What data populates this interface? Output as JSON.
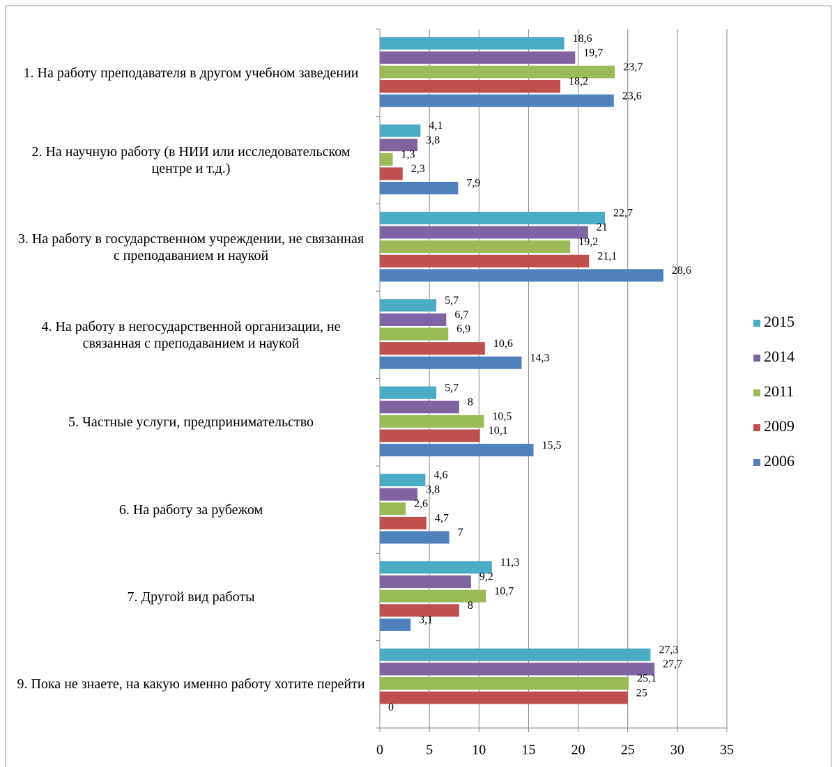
{
  "chart_data": {
    "type": "bar",
    "orientation": "horizontal",
    "categories": [
      "1. На работу преподавателя в другом учебном заведении",
      "2. На научную работу (в НИИ или исследовательском центре и т.д.)",
      "3. На работу в государственном учреждении, не связанная с преподаванием и наукой",
      "4. На работу в негосударственной организации, не связанная с преподаванием и наукой",
      "5. Частные услуги, предпринимательство",
      "6. На работу за рубежом",
      "7. Другой вид работы",
      "9. Пока не знаете, на какую именно работу хотите перейти"
    ],
    "series": [
      {
        "name": "2015",
        "color": "#4bacc6",
        "values": [
          18.6,
          4.1,
          22.7,
          5.7,
          5.7,
          4.6,
          11.3,
          27.3
        ],
        "value_labels": [
          "18,6",
          "4,1",
          "22,7",
          "5,7",
          "5,7",
          "4,6",
          "11,3",
          "27,3"
        ]
      },
      {
        "name": "2014",
        "color": "#8064a2",
        "values": [
          19.7,
          3.8,
          21,
          6.7,
          8,
          3.8,
          9.2,
          27.7
        ],
        "value_labels": [
          "19,7",
          "3,8",
          "21",
          "6,7",
          "8",
          "3,8",
          "9,2",
          "27,7"
        ]
      },
      {
        "name": "2011",
        "color": "#9bbb59",
        "values": [
          23.7,
          1.3,
          19.2,
          6.9,
          10.5,
          2.6,
          10.7,
          25.1
        ],
        "value_labels": [
          "23,7",
          "1,3",
          "19,2",
          "6,9",
          "10,5",
          "2,6",
          "10,7",
          "25,1"
        ]
      },
      {
        "name": "2009",
        "color": "#c0504d",
        "values": [
          18.2,
          2.3,
          21.1,
          10.6,
          10.1,
          4.7,
          8,
          25
        ],
        "value_labels": [
          "18,2",
          "2,3",
          "21,1",
          "10,6",
          "10,1",
          "4,7",
          "8",
          "25"
        ]
      },
      {
        "name": "2006",
        "color": "#4f81bd",
        "values": [
          23.6,
          7.9,
          28.6,
          14.3,
          15.5,
          7,
          3.1,
          0
        ],
        "value_labels": [
          "23,6",
          "7,9",
          "28,6",
          "14,3",
          "15,5",
          "7",
          "3,1",
          "0"
        ]
      }
    ],
    "xlim": [
      0,
      35
    ],
    "xticks": [
      0,
      5,
      10,
      15,
      20,
      25,
      30,
      35
    ],
    "grid": true,
    "legend": "right"
  }
}
